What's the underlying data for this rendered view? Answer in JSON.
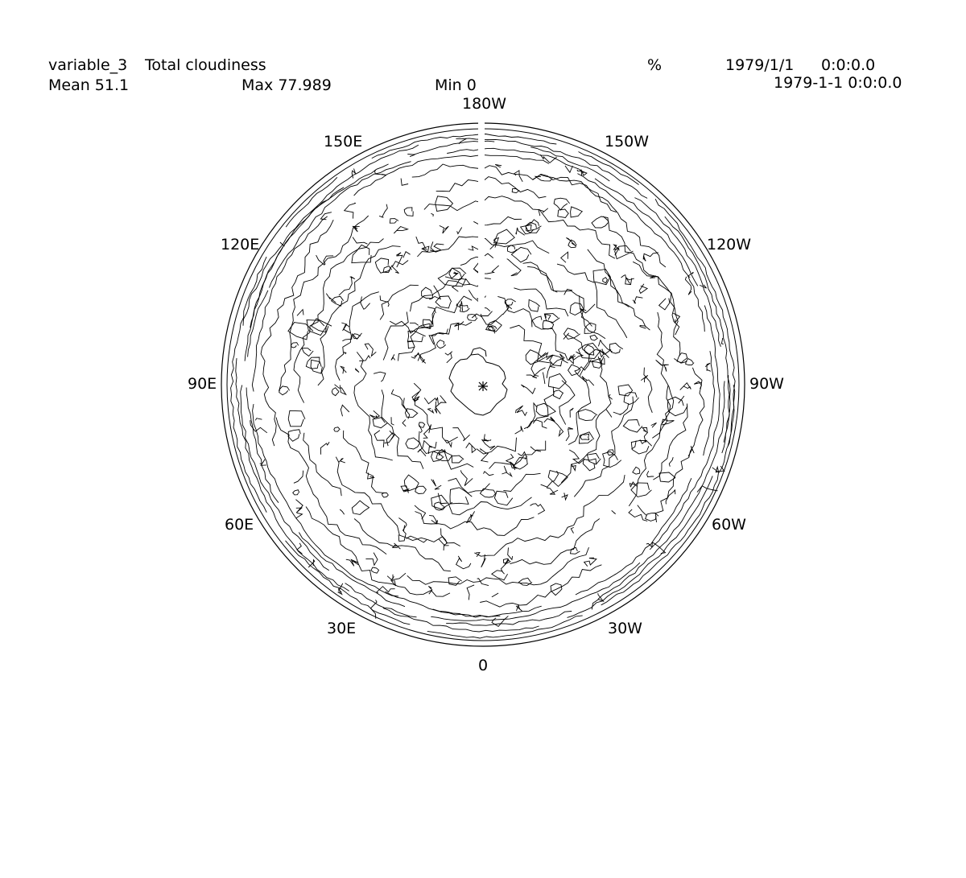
{
  "header": {
    "variable_name": "variable_3",
    "long_name": "Total cloudiness",
    "units": "%",
    "date": "1979/1/1",
    "time": "0:0:0.0",
    "datetime": "1979-1-1 0:0:0.0",
    "mean_text": "Mean 51.1",
    "max_text": "Max 77.989",
    "min_text": "Min 0"
  },
  "stats": {
    "mean": 51.1,
    "max": 77.989,
    "min": 0
  },
  "map": {
    "projection": "polar stereographic (south pole)",
    "plot_type": "contour",
    "line_color": "#000000",
    "longitude_labels": [
      "180W",
      "150W",
      "120W",
      "90W",
      "60W",
      "30W",
      "0",
      "30E",
      "60E",
      "90E",
      "120E",
      "150E"
    ]
  }
}
